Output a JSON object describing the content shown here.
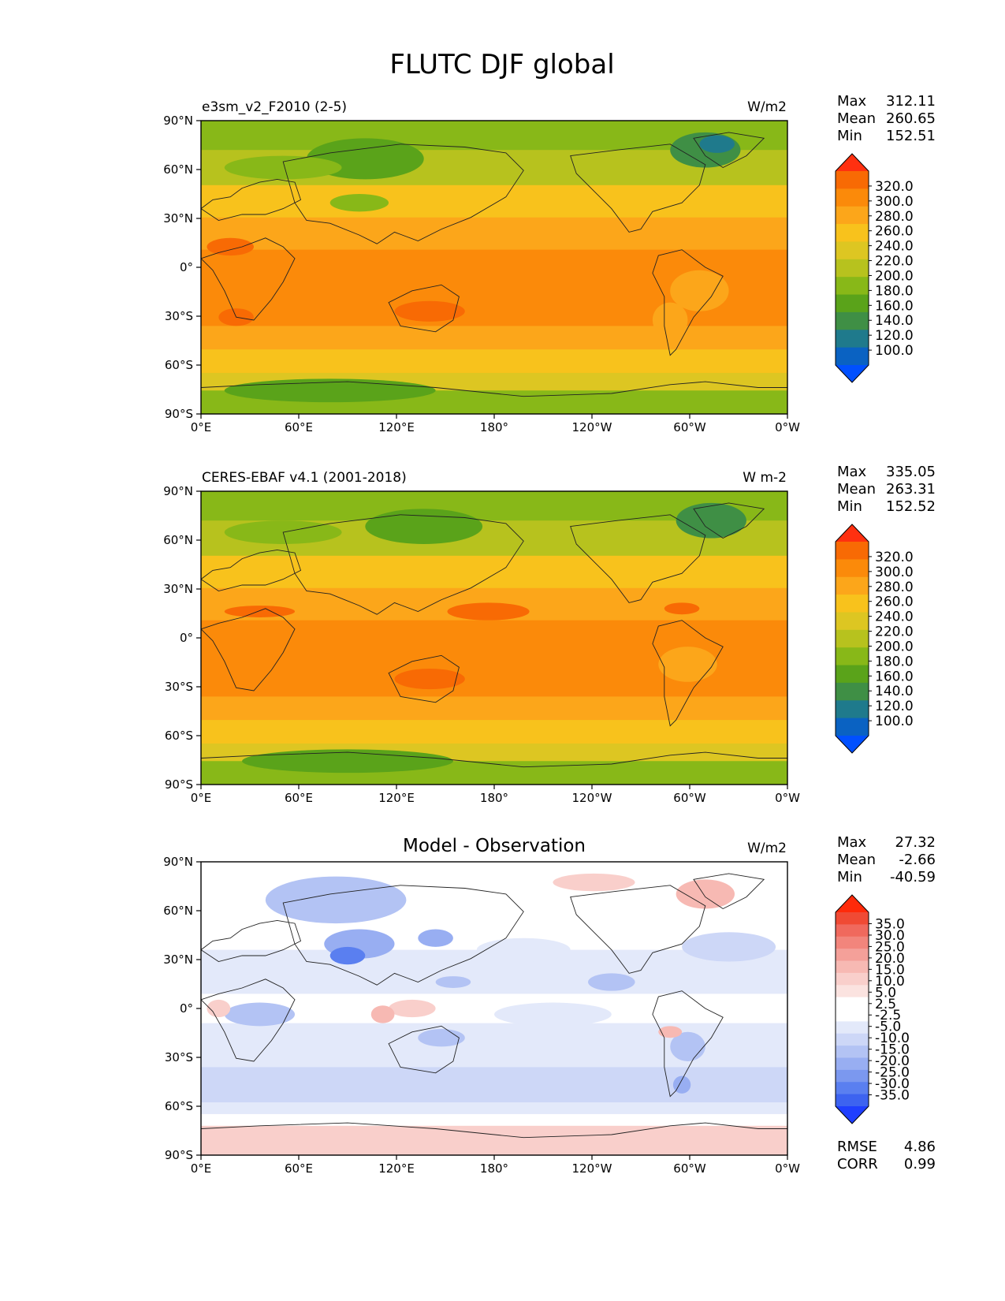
{
  "figure": {
    "title": "FLUTC DJF global",
    "x_ticks": [
      "0°E",
      "60°E",
      "120°E",
      "180°",
      "120°W",
      "60°W",
      "0°W"
    ],
    "y_ticks": [
      "90°N",
      "60°N",
      "30°N",
      "0°",
      "30°S",
      "60°S",
      "90°S"
    ],
    "stat_labels": {
      "max": "Max",
      "mean": "Mean",
      "min": "Min"
    }
  },
  "colors": {
    "abs_levels": [
      "#0050ff",
      "#0a62c2",
      "#1f7a8c",
      "#3f8f45",
      "#5aa31a",
      "#88b818",
      "#b7c21e",
      "#ddc622",
      "#f8c21c",
      "#fca61a",
      "#fb8a0a",
      "#f86a04",
      "#ff3010"
    ],
    "diff_levels": [
      "#1f3fff",
      "#3d63f0",
      "#5a7ff0",
      "#7b98ef",
      "#98aef2",
      "#b3c3f4",
      "#cdd7f7",
      "#e3e9fa",
      "#ffffff",
      "#ffffff",
      "#fbe3e0",
      "#f9cfcb",
      "#f7b9b3",
      "#f4a099",
      "#f2857c",
      "#f0695d",
      "#f04a34",
      "#ff2a0a"
    ]
  },
  "panels": [
    {
      "title": "",
      "left_title": "e3sm_v2_F2010 (2-5)",
      "units": "W/m2",
      "stats": {
        "max": "312.11",
        "mean": "260.65",
        "min": "152.51"
      },
      "colorbar_ticks": [
        "320.0",
        "300.0",
        "280.0",
        "260.0",
        "240.0",
        "220.0",
        "200.0",
        "180.0",
        "160.0",
        "140.0",
        "120.0",
        "100.0"
      ]
    },
    {
      "title": "",
      "left_title": "CERES-EBAF v4.1 (2001-2018)",
      "units": "W m-2",
      "stats": {
        "max": "335.05",
        "mean": "263.31",
        "min": "152.52"
      },
      "colorbar_ticks": [
        "320.0",
        "300.0",
        "280.0",
        "260.0",
        "240.0",
        "220.0",
        "200.0",
        "180.0",
        "160.0",
        "140.0",
        "120.0",
        "100.0"
      ]
    },
    {
      "title": "Model - Observation",
      "left_title": "",
      "units": "W/m2",
      "stats": {
        "max": "27.32",
        "mean": "-2.66",
        "min": "-40.59"
      },
      "colorbar_ticks": [
        "35.0",
        "30.0",
        "25.0",
        "20.0",
        "15.0",
        "10.0",
        "5.0",
        "2.5",
        "-2.5",
        "-5.0",
        "-10.0",
        "-15.0",
        "-20.0",
        "-25.0",
        "-30.0",
        "-35.0"
      ],
      "extra_stats": [
        {
          "label": "RMSE",
          "value": "4.86"
        },
        {
          "label": "CORR",
          "value": "0.99"
        }
      ]
    }
  ]
}
